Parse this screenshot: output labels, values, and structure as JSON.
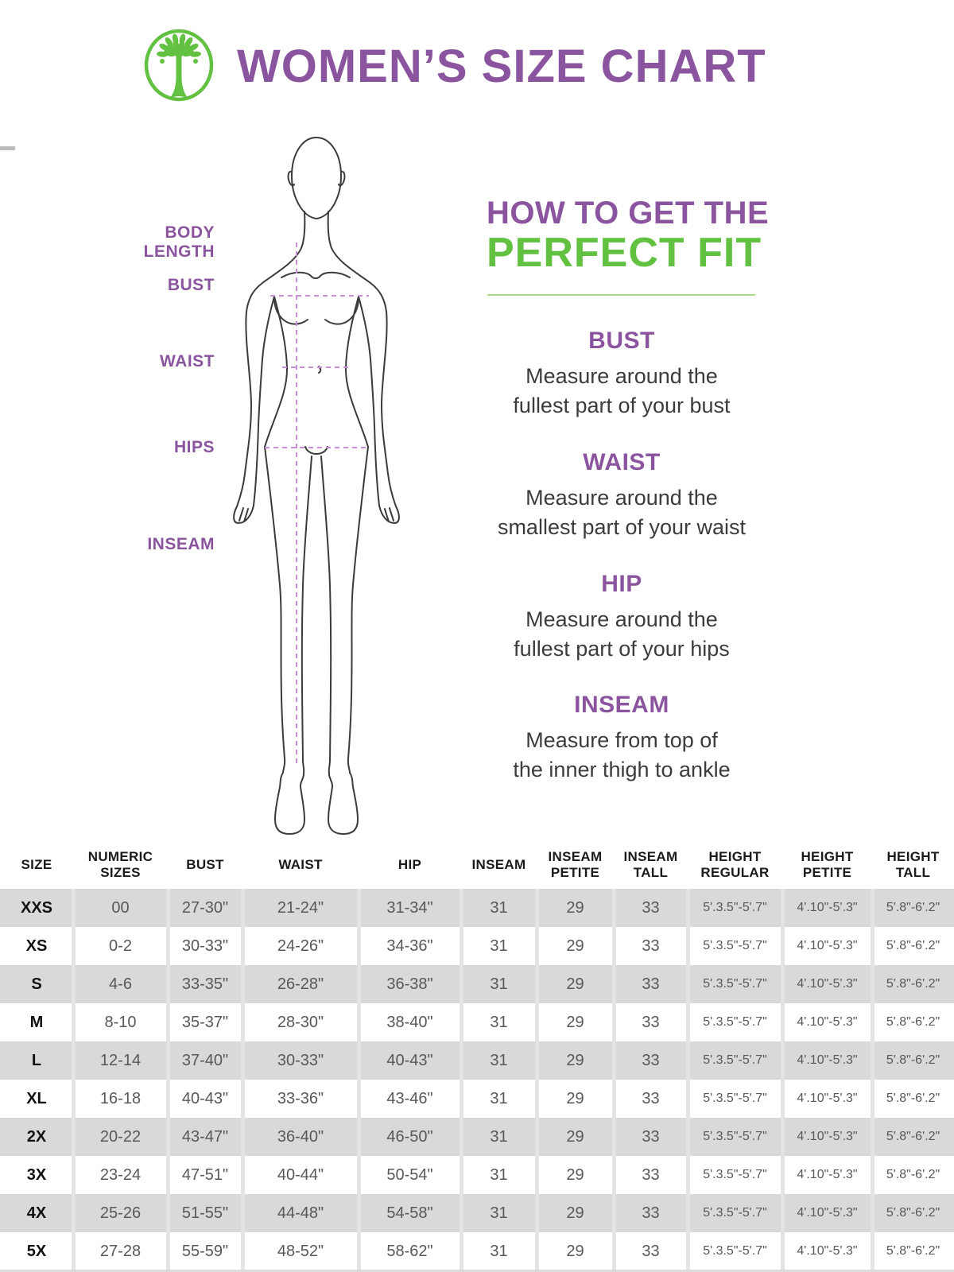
{
  "header": {
    "title": "WOMEN’S SIZE CHART",
    "logo_icon": "tree-in-circle"
  },
  "colors": {
    "purple": "#8a549e",
    "green": "#63c142",
    "light_green_divider": "#abd985",
    "dash_purple": "#c78fd4",
    "stripe_gray": "#d9d9d9"
  },
  "figure": {
    "labels": {
      "body_length": "BODY\nLENGTH",
      "bust": "BUST",
      "waist": "WAIST",
      "hips": "HIPS",
      "inseam": "INSEAM"
    }
  },
  "fit_guide": {
    "heading_line1": "HOW TO GET THE",
    "heading_line2": "PERFECT FIT",
    "sections": [
      {
        "title": "BUST",
        "description": "Measure around the\nfullest part of your bust"
      },
      {
        "title": "WAIST",
        "description": "Measure around the\nsmallest part of your waist"
      },
      {
        "title": "HIP",
        "description": "Measure around the\nfullest part of your hips"
      },
      {
        "title": "INSEAM",
        "description": "Measure from top of\nthe inner thigh to ankle"
      }
    ]
  },
  "size_table": {
    "columns": [
      "SIZE",
      "NUMERIC\nSIZES",
      "BUST",
      "WAIST",
      "HIP",
      "INSEAM",
      "INSEAM\nPETITE",
      "INSEAM\nTALL",
      "HEIGHT\nREGULAR",
      "HEIGHT\nPETITE",
      "HEIGHT\nTALL"
    ],
    "rows": [
      [
        "XXS",
        "00",
        "27-30\"",
        "21-24\"",
        "31-34\"",
        "31",
        "29",
        "33",
        "5'.3.5\"-5'.7\"",
        "4'.10\"-5'.3\"",
        "5'.8\"-6'.2\""
      ],
      [
        "XS",
        "0-2",
        "30-33\"",
        "24-26\"",
        "34-36\"",
        "31",
        "29",
        "33",
        "5'.3.5\"-5'.7\"",
        "4'.10\"-5'.3\"",
        "5'.8\"-6'.2\""
      ],
      [
        "S",
        "4-6",
        "33-35\"",
        "26-28\"",
        "36-38\"",
        "31",
        "29",
        "33",
        "5'.3.5\"-5'.7\"",
        "4'.10\"-5'.3\"",
        "5'.8\"-6'.2\""
      ],
      [
        "M",
        "8-10",
        "35-37\"",
        "28-30\"",
        "38-40\"",
        "31",
        "29",
        "33",
        "5'.3.5\"-5'.7\"",
        "4'.10\"-5'.3\"",
        "5'.8\"-6'.2\""
      ],
      [
        "L",
        "12-14",
        "37-40\"",
        "30-33\"",
        "40-43\"",
        "31",
        "29",
        "33",
        "5'.3.5\"-5'.7\"",
        "4'.10\"-5'.3\"",
        "5'.8\"-6'.2\""
      ],
      [
        "XL",
        "16-18",
        "40-43\"",
        "33-36\"",
        "43-46\"",
        "31",
        "29",
        "33",
        "5'.3.5\"-5'.7\"",
        "4'.10\"-5'.3\"",
        "5'.8\"-6'.2\""
      ],
      [
        "2X",
        "20-22",
        "43-47\"",
        "36-40\"",
        "46-50\"",
        "31",
        "29",
        "33",
        "5'.3.5\"-5'.7\"",
        "4'.10\"-5'.3\"",
        "5'.8\"-6'.2\""
      ],
      [
        "3X",
        "23-24",
        "47-51\"",
        "40-44\"",
        "50-54\"",
        "31",
        "29",
        "33",
        "5'.3.5\"-5'.7\"",
        "4'.10\"-5'.3\"",
        "5'.8\"-6'.2\""
      ],
      [
        "4X",
        "25-26",
        "51-55\"",
        "44-48\"",
        "54-58\"",
        "31",
        "29",
        "33",
        "5'.3.5\"-5'.7\"",
        "4'.10\"-5'.3\"",
        "5'.8\"-6'.2\""
      ],
      [
        "5X",
        "27-28",
        "55-59\"",
        "48-52\"",
        "58-62\"",
        "31",
        "29",
        "33",
        "5'.3.5\"-5'.7\"",
        "4'.10\"-5'.3\"",
        "5'.8\"-6'.2\""
      ]
    ]
  }
}
